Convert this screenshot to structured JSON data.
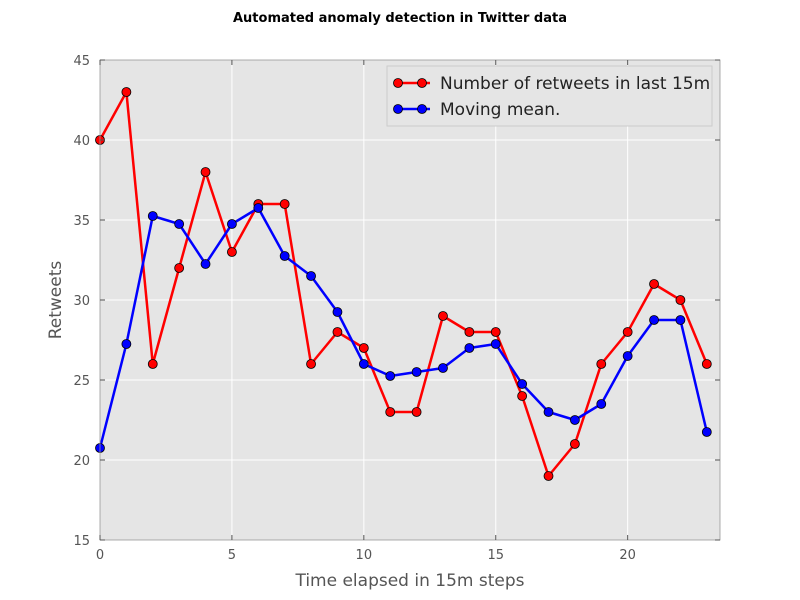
{
  "chart_data": {
    "type": "line",
    "title": "Automated anomaly detection in Twitter data",
    "xlabel": "Time elapsed in 15m steps",
    "ylabel": "Retweets",
    "xlim": [
      0,
      23.5
    ],
    "ylim": [
      15,
      45
    ],
    "xticks": [
      0,
      5,
      10,
      15,
      20
    ],
    "yticks": [
      15,
      20,
      25,
      30,
      35,
      40,
      45
    ],
    "grid": true,
    "legend_position": "top-right",
    "x": [
      0,
      1,
      2,
      3,
      4,
      5,
      6,
      7,
      8,
      9,
      10,
      11,
      12,
      13,
      14,
      15,
      16,
      17,
      18,
      19,
      20,
      21,
      22,
      23
    ],
    "series": [
      {
        "name": "Number of retweets in last 15m",
        "color": "#ff0000",
        "values": [
          40,
          43,
          26,
          32,
          38,
          33,
          36,
          36,
          26,
          28,
          27,
          23,
          23,
          29,
          28,
          28,
          24,
          19,
          21,
          26,
          28,
          31,
          30,
          26
        ]
      },
      {
        "name": "Moving mean.",
        "color": "#0000ff",
        "values": [
          20.75,
          27.25,
          35.25,
          34.75,
          32.25,
          34.75,
          35.75,
          32.75,
          31.5,
          29.25,
          26.0,
          25.25,
          25.5,
          25.75,
          27.0,
          27.25,
          24.75,
          23.0,
          22.5,
          23.5,
          26.5,
          28.75,
          28.75,
          21.75
        ]
      }
    ]
  }
}
